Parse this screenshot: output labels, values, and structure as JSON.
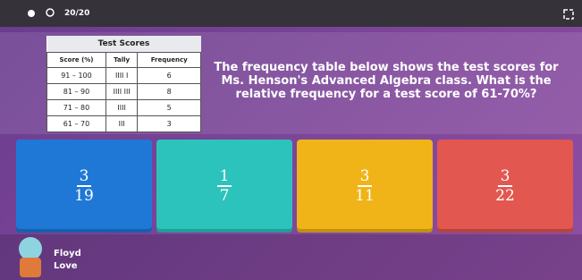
{
  "header": {
    "progress": "20/20"
  },
  "question": {
    "table": {
      "title": "Test Scores",
      "columns": [
        "Score (%)",
        "Tally",
        "Frequency"
      ],
      "rows": [
        [
          "91 – 100",
          "IIII I",
          "6"
        ],
        [
          "81 – 90",
          "IIII III",
          "8"
        ],
        [
          "71 – 80",
          "IIII",
          "5"
        ],
        [
          "61 – 70",
          "III",
          "3"
        ]
      ]
    },
    "text": "The frequency table below shows the test scores for Ms. Henson's Advanced Algebra class. What is the relative frequency for a test score of 61-70%?"
  },
  "answers": [
    {
      "numerator": "3",
      "denominator": "19",
      "color": "#1f78d6"
    },
    {
      "numerator": "1",
      "denominator": "7",
      "color": "#2cc3bd"
    },
    {
      "numerator": "3",
      "denominator": "11",
      "color": "#f0b419"
    },
    {
      "numerator": "3",
      "denominator": "22",
      "color": "#e2574f"
    }
  ],
  "player": {
    "name": "Floyd",
    "status": "Love"
  }
}
